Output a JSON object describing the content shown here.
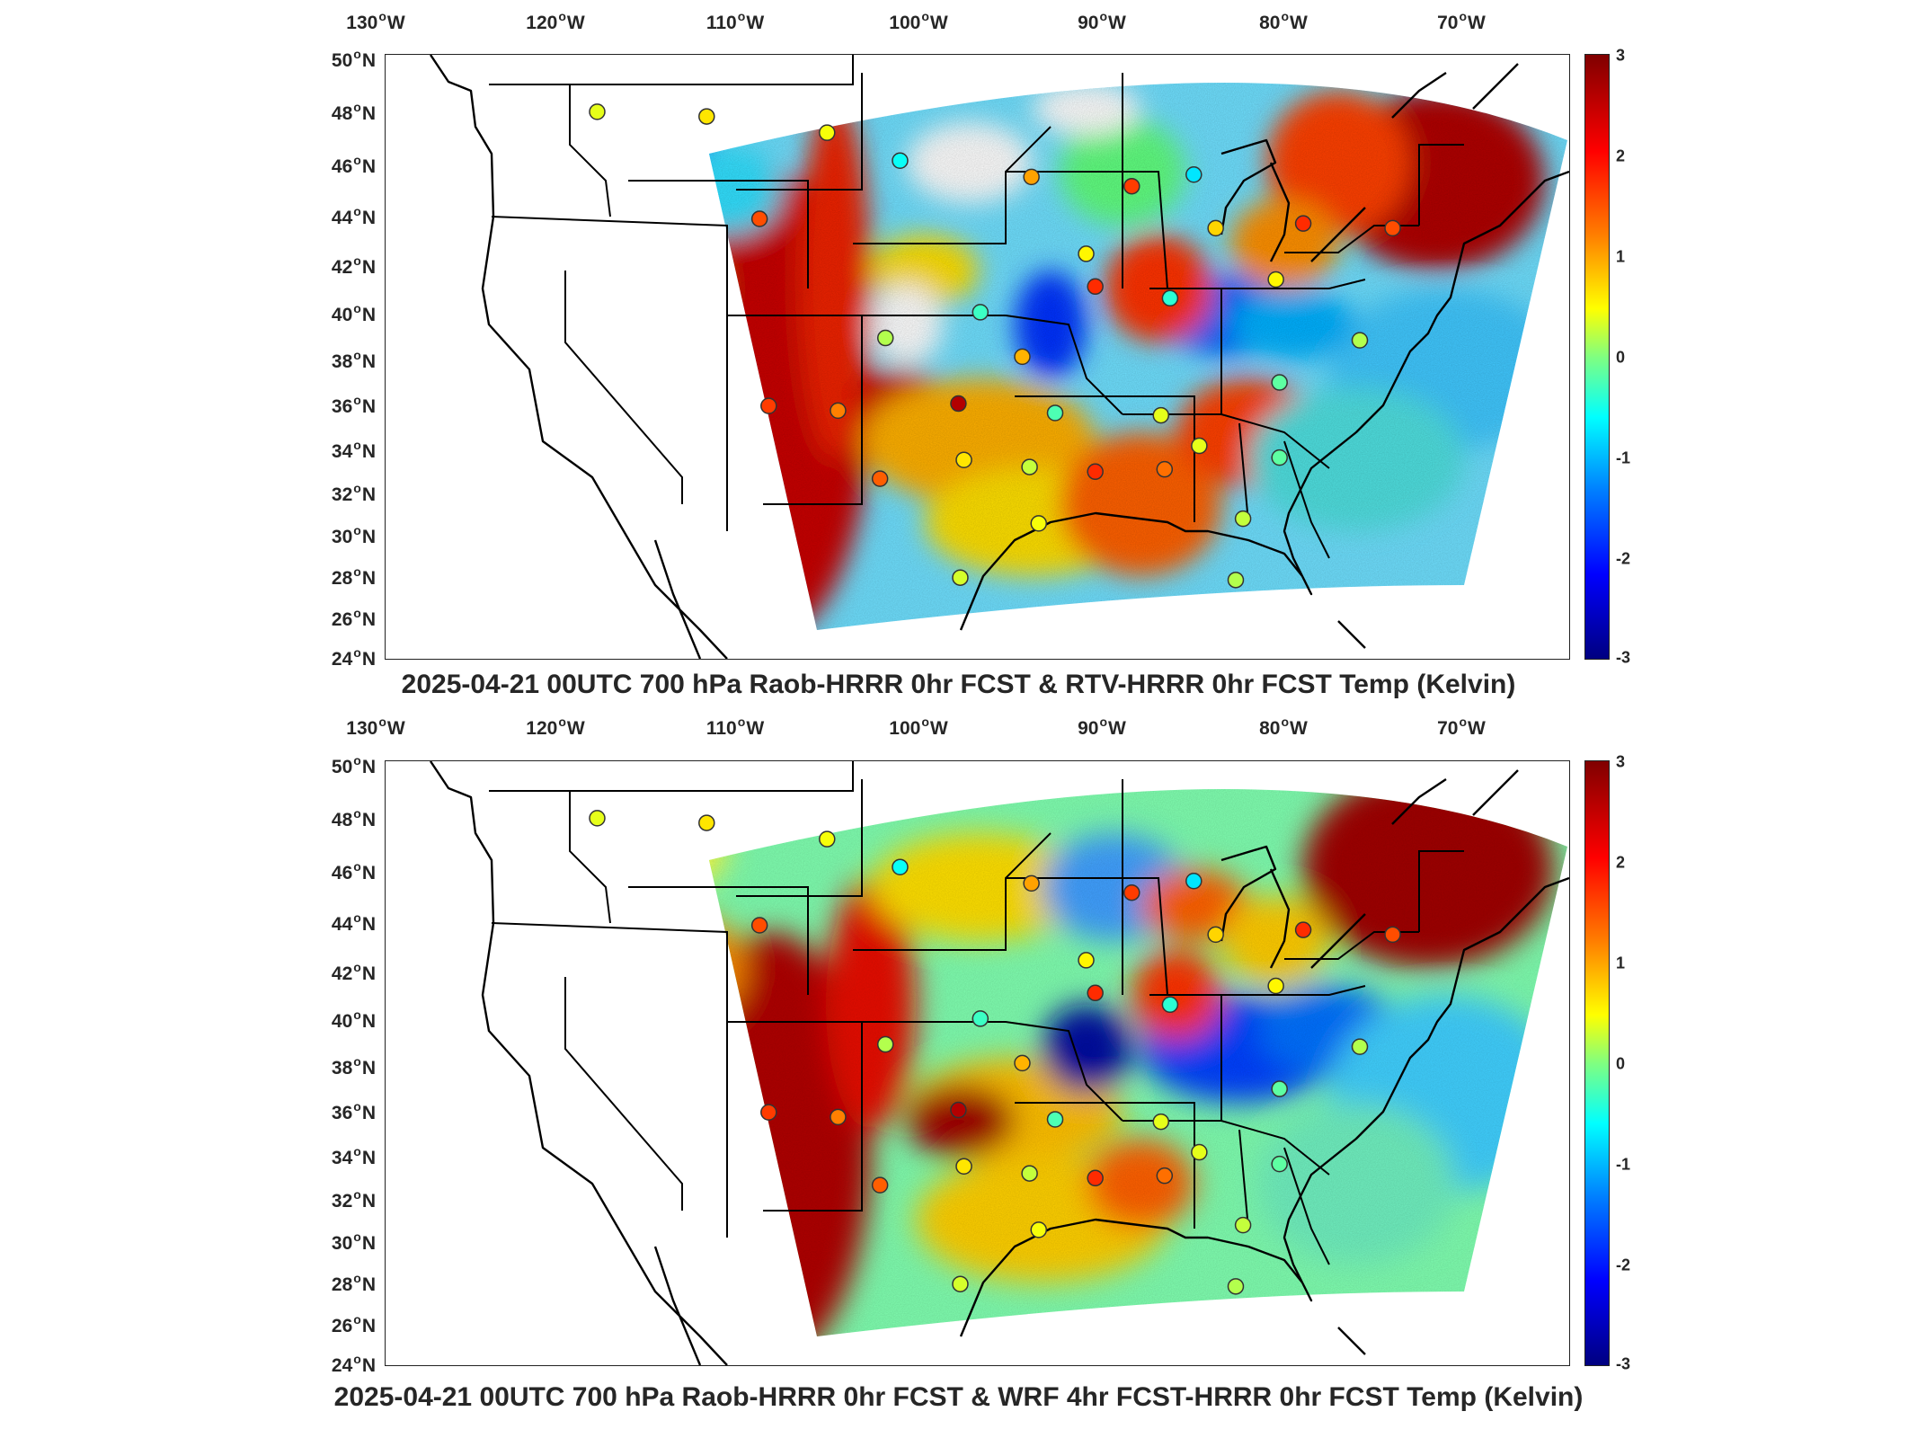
{
  "panels": [
    {
      "title": "2025-04-21 00UTC 700 hPa Raob-HRRR 0hr FCST & RTV-HRRR 0hr FCST Temp (Kelvin)",
      "lon_labels": [
        {
          "value": "130",
          "hem": "W"
        },
        {
          "value": "120",
          "hem": "W"
        },
        {
          "value": "110",
          "hem": "W"
        },
        {
          "value": "100",
          "hem": "W"
        },
        {
          "value": "90",
          "hem": "W"
        },
        {
          "value": "80",
          "hem": "W"
        },
        {
          "value": "70",
          "hem": "W"
        }
      ],
      "lat_labels": [
        {
          "value": "50",
          "hem": "N"
        },
        {
          "value": "48",
          "hem": "N"
        },
        {
          "value": "46",
          "hem": "N"
        },
        {
          "value": "44",
          "hem": "N"
        },
        {
          "value": "42",
          "hem": "N"
        },
        {
          "value": "40",
          "hem": "N"
        },
        {
          "value": "38",
          "hem": "N"
        },
        {
          "value": "36",
          "hem": "N"
        },
        {
          "value": "34",
          "hem": "N"
        },
        {
          "value": "32",
          "hem": "N"
        },
        {
          "value": "30",
          "hem": "N"
        },
        {
          "value": "28",
          "hem": "N"
        },
        {
          "value": "26",
          "hem": "N"
        },
        {
          "value": "24",
          "hem": "N"
        }
      ],
      "colorbar_ticks": [
        "3",
        "2",
        "1",
        "0",
        "-1",
        "-2",
        "-3"
      ]
    },
    {
      "title": "2025-04-21 00UTC 700 hPa Raob-HRRR 0hr FCST & WRF 4hr FCST-HRRR 0hr FCST Temp (Kelvin)",
      "lon_labels": [
        {
          "value": "130",
          "hem": "W"
        },
        {
          "value": "120",
          "hem": "W"
        },
        {
          "value": "110",
          "hem": "W"
        },
        {
          "value": "100",
          "hem": "W"
        },
        {
          "value": "90",
          "hem": "W"
        },
        {
          "value": "80",
          "hem": "W"
        },
        {
          "value": "70",
          "hem": "W"
        }
      ],
      "lat_labels": [
        {
          "value": "50",
          "hem": "N"
        },
        {
          "value": "48",
          "hem": "N"
        },
        {
          "value": "46",
          "hem": "N"
        },
        {
          "value": "44",
          "hem": "N"
        },
        {
          "value": "42",
          "hem": "N"
        },
        {
          "value": "40",
          "hem": "N"
        },
        {
          "value": "38",
          "hem": "N"
        },
        {
          "value": "36",
          "hem": "N"
        },
        {
          "value": "34",
          "hem": "N"
        },
        {
          "value": "32",
          "hem": "N"
        },
        {
          "value": "30",
          "hem": "N"
        },
        {
          "value": "28",
          "hem": "N"
        },
        {
          "value": "26",
          "hem": "N"
        },
        {
          "value": "24",
          "hem": "N"
        }
      ],
      "colorbar_ticks": [
        "3",
        "2",
        "1",
        "0",
        "-1",
        "-2",
        "-3"
      ]
    }
  ],
  "colormap": {
    "name": "jet",
    "stops": [
      "#800000",
      "#ff0000",
      "#ff8000",
      "#ffff00",
      "#80ff80",
      "#00ffff",
      "#0080ff",
      "#0000ff",
      "#000080"
    ],
    "range": [
      -3,
      3
    ]
  },
  "raob_stations": [
    {
      "lon": -117.4,
      "lat": 47.7,
      "value": 0.6
    },
    {
      "lon": -111.4,
      "lat": 47.5,
      "value": 0.9
    },
    {
      "lon": -104.8,
      "lat": 46.8,
      "value": 0.7
    },
    {
      "lon": -100.8,
      "lat": 45.6,
      "value": -0.7
    },
    {
      "lon": -93.6,
      "lat": 44.9,
      "value": 1.3
    },
    {
      "lon": -88.1,
      "lat": 44.5,
      "value": 1.9
    },
    {
      "lon": -84.7,
      "lat": 45.0,
      "value": -0.9
    },
    {
      "lon": -108.5,
      "lat": 43.1,
      "value": 1.8
    },
    {
      "lon": -90.6,
      "lat": 41.6,
      "value": 0.8
    },
    {
      "lon": -83.5,
      "lat": 42.7,
      "value": 1.0
    },
    {
      "lon": -78.7,
      "lat": 42.9,
      "value": 2.0
    },
    {
      "lon": -73.8,
      "lat": 42.7,
      "value": 1.8
    },
    {
      "lon": -96.4,
      "lat": 39.1,
      "value": -0.4
    },
    {
      "lon": -90.1,
      "lat": 40.2,
      "value": 2.0
    },
    {
      "lon": -86.0,
      "lat": 39.7,
      "value": -0.5
    },
    {
      "lon": -80.2,
      "lat": 40.5,
      "value": 0.8
    },
    {
      "lon": -101.6,
      "lat": 38.0,
      "value": 0.3
    },
    {
      "lon": -94.1,
      "lat": 37.2,
      "value": 1.2
    },
    {
      "lon": -97.6,
      "lat": 35.2,
      "value": 2.7
    },
    {
      "lon": -104.2,
      "lat": 34.9,
      "value": 1.5
    },
    {
      "lon": -108.0,
      "lat": 35.1,
      "value": 1.9
    },
    {
      "lon": -92.3,
      "lat": 34.8,
      "value": -0.3
    },
    {
      "lon": -86.5,
      "lat": 34.7,
      "value": 0.6
    },
    {
      "lon": -80.0,
      "lat": 36.1,
      "value": -0.2
    },
    {
      "lon": -75.6,
      "lat": 37.9,
      "value": 0.3
    },
    {
      "lon": -101.9,
      "lat": 32.0,
      "value": 1.7
    },
    {
      "lon": -97.3,
      "lat": 32.8,
      "value": 0.9
    },
    {
      "lon": -93.7,
      "lat": 32.5,
      "value": 0.4
    },
    {
      "lon": -90.1,
      "lat": 32.3,
      "value": 2.0
    },
    {
      "lon": -86.3,
      "lat": 32.4,
      "value": 1.6
    },
    {
      "lon": -84.4,
      "lat": 33.4,
      "value": 0.6
    },
    {
      "lon": -80.0,
      "lat": 32.9,
      "value": -0.2
    },
    {
      "lon": -93.2,
      "lat": 30.1,
      "value": 0.7
    },
    {
      "lon": -82.0,
      "lat": 30.3,
      "value": 0.4
    },
    {
      "lon": -97.5,
      "lat": 27.8,
      "value": 0.5
    },
    {
      "lon": -82.4,
      "lat": 27.7,
      "value": 0.3
    }
  ]
}
